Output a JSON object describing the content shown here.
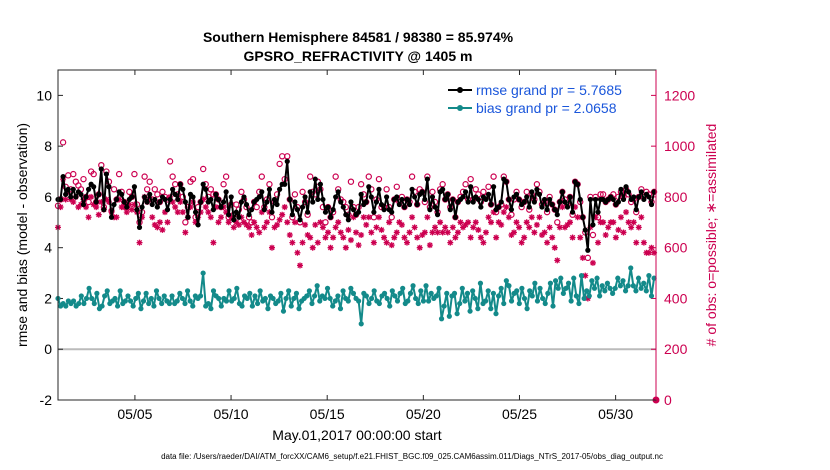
{
  "chart_data": {
    "type": "line",
    "title": "Southern Hemisphere 84581 / 98380 = 85.974%",
    "subtitle": "GPSRO_REFRACTIVITY @ 1405 m",
    "xlabel": "May.01,2017 00:00:00 start",
    "ylabel": "rmse and bias (model - observation)",
    "ylabel_right": "# of obs: o=possible; ∗=assimilated",
    "footnote": "data file: /Users/raeder/DAI/ATM_forcXX/CAM6_setup/f.e21.FHIST_BGC.f09_025.CAM6assim.011/Diags_NTrS_2017-05/obs_diag_output.nc",
    "xlim": [
      1,
      32.1
    ],
    "ylim": [
      -2,
      11
    ],
    "ylim_right": [
      0,
      1300
    ],
    "x_ticks": [
      {
        "value": 5,
        "label": "05/05"
      },
      {
        "value": 10,
        "label": "05/10"
      },
      {
        "value": 15,
        "label": "05/15"
      },
      {
        "value": 20,
        "label": "05/20"
      },
      {
        "value": 25,
        "label": "05/25"
      },
      {
        "value": 30,
        "label": "05/30"
      }
    ],
    "y_ticks": [
      -2,
      0,
      2,
      4,
      6,
      8,
      10
    ],
    "y_ticks_right": [
      0,
      200,
      400,
      600,
      800,
      1000,
      1200
    ],
    "zero_line": 0,
    "legend": {
      "placement": "top-right"
    },
    "series": [
      {
        "name": "rmse grand pr = 5.7685",
        "color": "#000000",
        "marker": "filled-circle",
        "values": [
          5.9,
          5.9,
          6.8,
          6.1,
          6.3,
          6.0,
          6.3,
          6.0,
          6.2,
          6.1,
          5.7,
          6.0,
          6.3,
          6.5,
          6.4,
          5.8,
          6.1,
          7.1,
          5.5,
          6.9,
          6.4,
          5.2,
          5.7,
          5.9,
          6.2,
          6.1,
          5.8,
          5.6,
          5.9,
          6.0,
          6.4,
          5.5,
          4.8,
          5.6,
          6.0,
          5.8,
          6.1,
          5.7,
          5.9,
          5.6,
          5.8,
          6.0,
          5.9,
          5.5,
          5.9,
          6.3,
          6.1,
          5.9,
          6.5,
          6.3,
          5.8,
          5.2,
          6.1,
          6.0,
          5.4,
          4.9,
          5.8,
          6.5,
          6.3,
          5.8,
          5.9,
          5.5,
          6.1,
          5.9,
          5.6,
          5.8,
          6.2,
          5.3,
          6.0,
          5.1,
          5.4,
          5.2,
          5.8,
          6.0,
          5.7,
          5.3,
          5.5,
          5.8,
          5.9,
          6.0,
          6.2,
          5.5,
          5.8,
          6.3,
          5.4,
          5.9,
          5.7,
          6.3,
          6.5,
          6.5,
          7.4,
          5.9,
          5.3,
          5.8,
          5.5,
          5.1,
          5.6,
          6.0,
          5.4,
          6.2,
          5.8,
          6.7,
          5.9,
          6.5,
          5.9,
          5.4,
          5.6,
          5.2,
          5.5,
          6.0,
          6.2,
          5.8,
          5.6,
          5.3,
          5.1,
          5.8,
          5.5,
          5.3,
          5.4,
          6.1,
          5.7,
          5.8,
          6.4,
          6.0,
          5.4,
          5.8,
          6.3,
          5.7,
          5.5,
          6.0,
          5.5,
          5.4,
          5.9,
          6.0,
          5.7,
          5.9,
          5.6,
          5.9,
          5.7,
          6.3,
          6.0,
          5.7,
          6.1,
          6.2,
          5.9,
          6.7,
          5.5,
          6.0,
          5.6,
          5.3,
          6.2,
          6.3,
          5.9,
          6.1,
          5.5,
          5.9,
          5.2,
          5.8,
          5.9,
          6.0,
          6.2,
          5.8,
          6.4,
          5.8,
          6.0,
          5.9,
          5.6,
          6.0,
          5.9,
          6.1,
          5.7,
          6.4,
          5.5,
          5.6,
          5.8,
          6.7,
          6.6,
          5.9,
          5.5,
          6.0,
          6.1,
          5.9,
          5.7,
          5.8,
          6.0,
          5.6,
          6.2,
          5.8,
          6.3,
          6.1,
          5.6,
          5.9,
          5.5,
          5.9,
          5.7,
          5.5,
          5.3,
          5.8,
          6.2,
          5.8,
          5.6,
          6.0,
          5.4,
          6.6,
          6.5,
          5.9,
          5.2,
          4.7,
          3.9,
          5.9,
          4.9,
          5.9,
          5.4,
          5.9,
          5.9,
          5.8,
          5.9,
          6.0,
          5.9,
          5.7,
          5.8,
          6.3,
          5.9,
          6.4,
          6.2,
          5.9,
          6.0,
          5.5,
          6.0,
          6.2,
          5.9,
          6.1,
          6.0,
          5.7,
          6.2
        ]
      },
      {
        "name": "bias grand pr = 2.0658",
        "color": "#138a8a",
        "marker": "filled-circle",
        "values": [
          2.0,
          1.7,
          1.8,
          1.7,
          1.9,
          1.8,
          1.9,
          1.7,
          1.8,
          2.1,
          1.8,
          2.0,
          2.4,
          2.0,
          1.8,
          2.2,
          1.6,
          1.7,
          2.1,
          2.3,
          1.8,
          1.9,
          2.0,
          1.7,
          2.3,
          1.8,
          1.9,
          2.1,
          1.9,
          1.7,
          2.0,
          2.2,
          1.6,
          1.9,
          2.2,
          1.8,
          2.0,
          1.7,
          2.3,
          2.0,
          1.8,
          2.1,
          1.9,
          1.8,
          2.1,
          1.8,
          1.9,
          2.2,
          2.0,
          1.8,
          2.3,
          1.9,
          1.7,
          2.1,
          2.0,
          2.1,
          3.0,
          1.7,
          1.8,
          1.6,
          2.3,
          2.1,
          2.0,
          1.7,
          2.0,
          1.9,
          2.3,
          1.9,
          2.0,
          2.4,
          1.8,
          1.7,
          2.1,
          2.0,
          2.2,
          1.7,
          2.1,
          1.8,
          2.3,
          1.9,
          2.0,
          1.6,
          2.1,
          2.0,
          1.8,
          1.9,
          2.2,
          1.5,
          2.0,
          2.3,
          1.7,
          2.0,
          2.2,
          1.6,
          1.9,
          2.0,
          2.1,
          2.3,
          1.8,
          2.1,
          2.5,
          1.9,
          2.1,
          2.0,
          2.4,
          2.0,
          1.7,
          1.9,
          2.1,
          1.6,
          2.3,
          2.0,
          1.9,
          2.4,
          2.2,
          2.0,
          1.9,
          1.0,
          2.2,
          2.1,
          1.8,
          2.0,
          2.3,
          1.9,
          1.8,
          2.1,
          2.2,
          2.0,
          1.7,
          2.3,
          2.1,
          1.9,
          2.2,
          2.4,
          1.8,
          1.9,
          2.2,
          2.5,
          2.0,
          1.8,
          2.3,
          1.9,
          2.5,
          1.9,
          2.2,
          2.0,
          2.1,
          2.4,
          1.2,
          1.7,
          2.2,
          1.3,
          2.1,
          2.2,
          1.4,
          1.8,
          2.4,
          1.9,
          2.2,
          1.5,
          2.3,
          2.0,
          1.6,
          2.6,
          1.8,
          1.9,
          2.3,
          1.6,
          2.2,
          1.4,
          2.1,
          2.4,
          1.8,
          2.7,
          2.5,
          1.9,
          2.2,
          2.3,
          1.8,
          2.4,
          2.0,
          1.6,
          2.3,
          2.1,
          2.6,
          1.9,
          2.4,
          2.0,
          1.8,
          2.2,
          2.6,
          1.7,
          2.7,
          2.4,
          2.8,
          2.2,
          2.4,
          2.6,
          1.9,
          2.8,
          2.1,
          1.8,
          2.9,
          2.0,
          2.3,
          2.1,
          2.7,
          2.4,
          2.8,
          2.1,
          2.5,
          2.3,
          2.6,
          2.4,
          2.2,
          2.4,
          2.8,
          2.5,
          2.7,
          2.3,
          2.5,
          3.2,
          2.5,
          2.3,
          2.8,
          2.4,
          2.6,
          2.3,
          2.9,
          2.1,
          2.8
        ]
      },
      {
        "name": "possible",
        "axis": "right",
        "color": "#cc0050",
        "marker": "open-circle",
        "values": [
          765,
          790,
          1015,
          840,
          885,
          830,
          890,
          860,
          845,
          830,
          870,
          800,
          780,
          900,
          890,
          780,
          810,
          925,
          760,
          900,
          860,
          745,
          830,
          790,
          890,
          820,
          780,
          760,
          820,
          800,
          890,
          770,
          700,
          740,
          880,
          830,
          860,
          790,
          830,
          810,
          780,
          820,
          800,
          790,
          940,
          880,
          850,
          810,
          850,
          800,
          700,
          760,
          860,
          870,
          720,
          760,
          780,
          910,
          850,
          800,
          830,
          810,
          810,
          790,
          760,
          850,
          880,
          720,
          770,
          730,
          770,
          750,
          820,
          790,
          760,
          720,
          700,
          780,
          760,
          820,
          880,
          760,
          790,
          850,
          720,
          780,
          810,
          930,
          960,
          870,
          960,
          790,
          720,
          810,
          760,
          700,
          820,
          780,
          730,
          880,
          820,
          810,
          860,
          830,
          760,
          700,
          760,
          720,
          740,
          880,
          830,
          790,
          780,
          760,
          730,
          860,
          760,
          730,
          760,
          850,
          810,
          780,
          880,
          830,
          720,
          790,
          870,
          760,
          760,
          830,
          760,
          720,
          790,
          840,
          780,
          800,
          760,
          790,
          780,
          880,
          820,
          770,
          830,
          820,
          780,
          880,
          760,
          820,
          780,
          740,
          830,
          850,
          790,
          810,
          760,
          790,
          720,
          780,
          800,
          820,
          850,
          790,
          870,
          790,
          830,
          810,
          780,
          820,
          800,
          840,
          770,
          880,
          740,
          760,
          770,
          880,
          860,
          790,
          730,
          790,
          820,
          790,
          760,
          780,
          820,
          750,
          810,
          790,
          850,
          820,
          770,
          780,
          740,
          800,
          770,
          750,
          700,
          780,
          820,
          790,
          770,
          800,
          730,
          860,
          850,
          780,
          720,
          660,
          560,
          800,
          650,
          800,
          720,
          810,
          810,
          780,
          790,
          800,
          810,
          770,
          800,
          820,
          800,
          830,
          810,
          780,
          790,
          740,
          800,
          830,
          800,
          820,
          810,
          780,
          820
        ]
      },
      {
        "name": "assimilated",
        "axis": "right",
        "color": "#cc0050",
        "marker": "asterisk",
        "values": [
          680,
          760,
          870,
          790,
          820,
          790,
          780,
          800,
          760,
          770,
          790,
          760,
          720,
          800,
          770,
          760,
          730,
          780,
          750,
          790,
          780,
          740,
          720,
          720,
          790,
          760,
          760,
          740,
          770,
          750,
          770,
          740,
          620,
          720,
          800,
          780,
          790,
          720,
          690,
          680,
          700,
          670,
          740,
          700,
          800,
          780,
          760,
          740,
          780,
          740,
          660,
          720,
          760,
          780,
          700,
          720,
          740,
          790,
          760,
          740,
          720,
          620,
          760,
          700,
          720,
          760,
          740,
          700,
          720,
          680,
          700,
          690,
          720,
          700,
          690,
          680,
          650,
          700,
          680,
          660,
          740,
          680,
          700,
          740,
          600,
          680,
          690,
          710,
          730,
          760,
          700,
          650,
          620,
          700,
          580,
          530,
          620,
          690,
          650,
          640,
          600,
          690,
          620,
          700,
          680,
          640,
          660,
          600,
          640,
          680,
          700,
          660,
          640,
          600,
          670,
          630,
          720,
          660,
          610,
          650,
          720,
          690,
          720,
          660,
          620,
          680,
          720,
          670,
          640,
          620,
          700,
          610,
          640,
          660,
          700,
          690,
          640,
          620,
          660,
          720,
          680,
          640,
          600,
          650,
          660,
          720,
          610,
          660,
          680,
          660,
          700,
          660,
          680,
          660,
          620,
          680,
          640,
          660,
          700,
          680,
          690,
          700,
          640,
          680,
          700,
          670,
          640,
          620,
          660,
          720,
          700,
          740,
          640,
          700,
          690,
          740,
          760,
          720,
          650,
          660,
          700,
          680,
          620,
          640,
          700,
          680,
          720,
          660,
          690,
          720,
          650,
          660,
          620,
          680,
          640,
          600,
          550,
          680,
          760,
          680,
          690,
          700,
          640,
          760,
          720,
          640,
          560,
          490,
          400,
          680,
          540,
          720,
          620,
          700,
          700,
          650,
          680,
          700,
          700,
          640,
          670,
          720,
          660,
          740,
          700,
          680,
          700,
          620,
          680,
          720,
          620,
          580,
          580,
          600,
          580
        ]
      }
    ]
  }
}
